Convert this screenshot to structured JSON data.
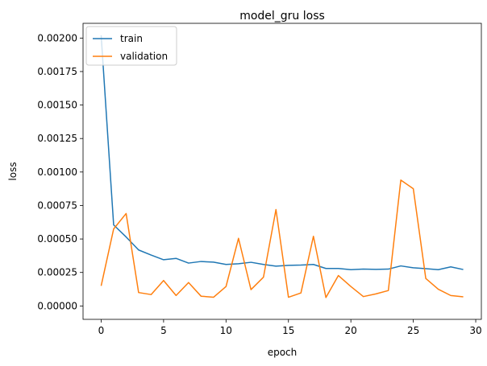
{
  "chart_data": {
    "type": "line",
    "title": "model_gru loss",
    "xlabel": "epoch",
    "ylabel": "loss",
    "x": [
      0,
      1,
      2,
      3,
      4,
      5,
      6,
      7,
      8,
      9,
      10,
      11,
      12,
      13,
      14,
      15,
      16,
      17,
      18,
      19,
      20,
      21,
      22,
      23,
      24,
      25,
      26,
      27,
      28,
      29
    ],
    "xlim": [
      -1.45,
      30.45
    ],
    "ylim": [
      -0.0001,
      0.00211
    ],
    "xticks": [
      0,
      5,
      10,
      15,
      20,
      25,
      30
    ],
    "xtick_labels": [
      "0",
      "5",
      "10",
      "15",
      "20",
      "25",
      "30"
    ],
    "yticks": [
      0,
      0.00025,
      0.0005,
      0.00075,
      0.001,
      0.00125,
      0.0015,
      0.00175,
      0.002
    ],
    "ytick_labels": [
      "0.00000",
      "0.00025",
      "0.00050",
      "0.00075",
      "0.00100",
      "0.00125",
      "0.00150",
      "0.00175",
      "0.00200"
    ],
    "grid": false,
    "legend_position": "top-left",
    "series": [
      {
        "name": "train",
        "color": "#1f77b4",
        "values": [
          0.00202,
          0.000605,
          0.000515,
          0.000418,
          0.00038,
          0.000345,
          0.000355,
          0.00032,
          0.000332,
          0.000327,
          0.00031,
          0.000315,
          0.000326,
          0.00031,
          0.000297,
          0.000303,
          0.000305,
          0.00031,
          0.00028,
          0.00028,
          0.000271,
          0.000275,
          0.000273,
          0.000275,
          0.000299,
          0.000285,
          0.000278,
          0.000271,
          0.000292,
          0.000272
        ]
      },
      {
        "name": "validation",
        "color": "#ff7f0e",
        "values": [
          0.00015,
          0.000575,
          0.00069,
          0.0001,
          8.5e-05,
          0.00019,
          7.8e-05,
          0.000175,
          7.3e-05,
          6.5e-05,
          0.000145,
          0.000505,
          0.000122,
          0.000215,
          0.00072,
          6.5e-05,
          9.7e-05,
          0.00052,
          6.3e-05,
          0.000227,
          0.000145,
          7e-05,
          9e-05,
          0.000115,
          0.00094,
          0.000875,
          0.000205,
          0.000125,
          7.8e-05,
          6.8e-05
        ]
      }
    ]
  }
}
